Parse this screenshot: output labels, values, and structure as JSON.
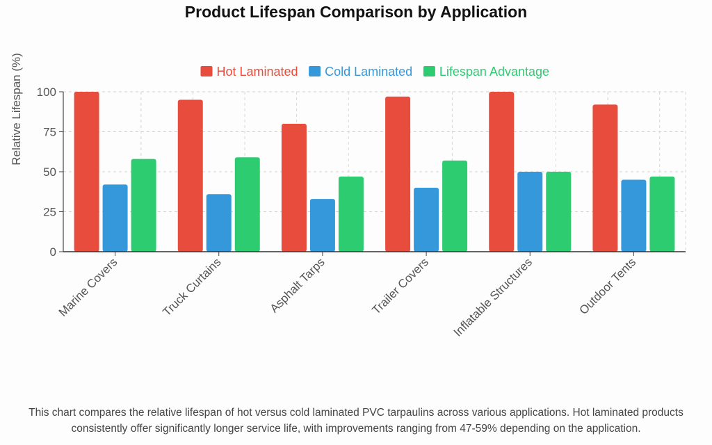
{
  "chart_data": {
    "type": "bar",
    "title": "Product Lifespan Comparison by Application",
    "ylabel": "Relative Lifespan (%)",
    "xlabel": "",
    "ylim": [
      0,
      100
    ],
    "yticks": [
      0,
      25,
      50,
      75,
      100
    ],
    "grid": true,
    "legend_position": "top-center",
    "categories": [
      "Marine Covers",
      "Truck Curtains",
      "Asphalt Tarps",
      "Trailer Covers",
      "Inflatable Structures",
      "Outdoor Tents"
    ],
    "series": [
      {
        "name": "Hot Laminated",
        "color": "#e74c3c",
        "values": [
          100,
          95,
          80,
          97,
          100,
          92
        ]
      },
      {
        "name": "Cold Laminated",
        "color": "#3498db",
        "values": [
          42,
          36,
          33,
          40,
          50,
          45
        ]
      },
      {
        "name": "Lifespan Advantage",
        "color": "#2ecc71",
        "values": [
          58,
          59,
          47,
          57,
          50,
          47
        ]
      }
    ]
  },
  "caption": "This chart compares the relative lifespan of hot versus cold laminated PVC tarpaulins across various applications. Hot laminated products consistently offer significantly longer service life, with improvements ranging from 47-59% depending on the application."
}
